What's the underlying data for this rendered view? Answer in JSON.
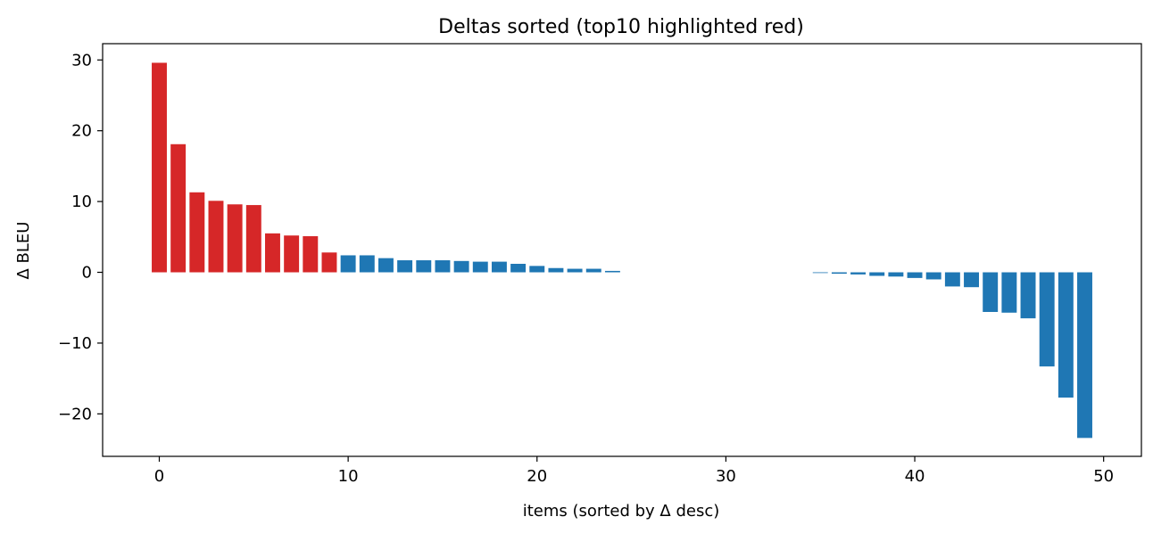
{
  "chart_data": {
    "type": "bar",
    "title": "Deltas sorted (top10 highlighted red)",
    "xlabel": "items (sorted by Δ desc)",
    "ylabel": "Δ BLEU",
    "xlim": [
      -3,
      52
    ],
    "ylim": [
      -26,
      32.3
    ],
    "xticks": [
      0,
      10,
      20,
      30,
      40,
      50
    ],
    "yticks": [
      -20,
      -10,
      0,
      10,
      20,
      30
    ],
    "grid": false,
    "highlight_count": 10,
    "highlight_color": "#d62728",
    "base_color": "#1f77b4",
    "x": [
      0,
      1,
      2,
      3,
      4,
      5,
      6,
      7,
      8,
      9,
      10,
      11,
      12,
      13,
      14,
      15,
      16,
      17,
      18,
      19,
      20,
      21,
      22,
      23,
      24,
      25,
      26,
      27,
      28,
      29,
      30,
      31,
      32,
      33,
      34,
      35,
      36,
      37,
      38,
      39,
      40,
      41,
      42,
      43,
      44,
      45,
      46,
      47,
      48,
      49
    ],
    "values": [
      29.6,
      18.1,
      11.3,
      10.1,
      9.6,
      9.5,
      5.5,
      5.2,
      5.1,
      2.8,
      2.4,
      2.4,
      2.0,
      1.7,
      1.7,
      1.7,
      1.6,
      1.5,
      1.5,
      1.2,
      0.9,
      0.6,
      0.5,
      0.5,
      0.2,
      0,
      0,
      0,
      0,
      0,
      0,
      0,
      0,
      0,
      0,
      -0.1,
      -0.2,
      -0.3,
      -0.5,
      -0.6,
      -0.8,
      -1.0,
      -2.0,
      -2.1,
      -5.6,
      -5.7,
      -6.5,
      -13.3,
      -17.7,
      -23.4
    ]
  }
}
